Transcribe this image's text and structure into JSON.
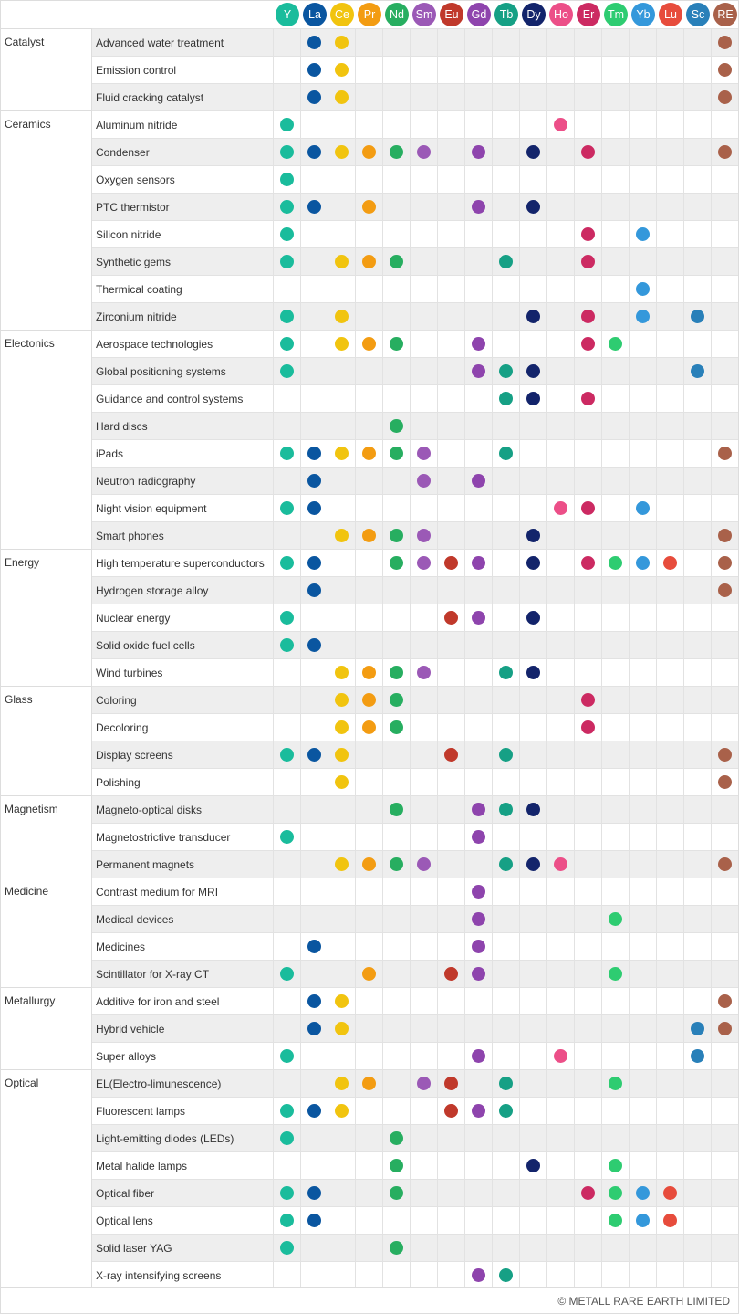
{
  "elements": [
    {
      "sym": "Y",
      "color": "#1abc9c"
    },
    {
      "sym": "La",
      "color": "#0a56a0"
    },
    {
      "sym": "Ce",
      "color": "#f1c40f"
    },
    {
      "sym": "Pr",
      "color": "#f39c12"
    },
    {
      "sym": "Nd",
      "color": "#27ae60"
    },
    {
      "sym": "Sm",
      "color": "#9b59b6"
    },
    {
      "sym": "Eu",
      "color": "#c0392b"
    },
    {
      "sym": "Gd",
      "color": "#8e44ad"
    },
    {
      "sym": "Tb",
      "color": "#16a085"
    },
    {
      "sym": "Dy",
      "color": "#13246b"
    },
    {
      "sym": "Ho",
      "color": "#ec4f88"
    },
    {
      "sym": "Er",
      "color": "#cc2a62"
    },
    {
      "sym": "Tm",
      "color": "#2ecc71"
    },
    {
      "sym": "Yb",
      "color": "#3498db"
    },
    {
      "sym": "Lu",
      "color": "#e74c3c"
    },
    {
      "sym": "Sc",
      "color": "#2980b9"
    },
    {
      "sym": "RE",
      "color": "#a9614a"
    }
  ],
  "groups": [
    {
      "name": "Catalyst",
      "rows": [
        {
          "label": "Advanced water treatment",
          "uses": [
            "La",
            "Ce",
            "RE"
          ]
        },
        {
          "label": "Emission control",
          "uses": [
            "La",
            "Ce",
            "RE"
          ]
        },
        {
          "label": "Fluid cracking catalyst",
          "uses": [
            "La",
            "Ce",
            "RE"
          ]
        }
      ]
    },
    {
      "name": "Ceramics",
      "rows": [
        {
          "label": "Aluminum nitride",
          "uses": [
            "Y",
            "Ho"
          ]
        },
        {
          "label": "Condenser",
          "uses": [
            "Y",
            "La",
            "Ce",
            "Pr",
            "Nd",
            "Sm",
            "Gd",
            "Dy",
            "Er",
            "RE"
          ]
        },
        {
          "label": "Oxygen sensors",
          "uses": [
            "Y"
          ]
        },
        {
          "label": "PTC thermistor",
          "uses": [
            "Y",
            "La",
            "Pr",
            "Gd",
            "Dy"
          ]
        },
        {
          "label": "Silicon nitride",
          "uses": [
            "Y",
            "Er",
            "Yb"
          ]
        },
        {
          "label": "Synthetic gems",
          "uses": [
            "Y",
            "Ce",
            "Pr",
            "Nd",
            "Tb",
            "Er"
          ]
        },
        {
          "label": "Thermical coating",
          "uses": [
            "Yb"
          ]
        },
        {
          "label": "Zirconium nitride",
          "uses": [
            "Y",
            "Ce",
            "Dy",
            "Er",
            "Yb",
            "Sc"
          ]
        }
      ]
    },
    {
      "name": "Electonics",
      "rows": [
        {
          "label": "Aerospace technologies",
          "uses": [
            "Y",
            "Ce",
            "Pr",
            "Nd",
            "Gd",
            "Er",
            "Tm"
          ]
        },
        {
          "label": "Global positioning systems",
          "uses": [
            "Y",
            "Gd",
            "Tb",
            "Dy",
            "Sc"
          ]
        },
        {
          "label": "Guidance and control systems",
          "uses": [
            "Tb",
            "Dy",
            "Er"
          ]
        },
        {
          "label": "Hard discs",
          "uses": [
            "Nd"
          ]
        },
        {
          "label": "iPads",
          "uses": [
            "Y",
            "La",
            "Ce",
            "Pr",
            "Nd",
            "Sm",
            "Tb",
            "RE"
          ]
        },
        {
          "label": "Neutron radiography",
          "uses": [
            "La",
            "Sm",
            "Gd"
          ]
        },
        {
          "label": "Night vision equipment",
          "uses": [
            "Y",
            "La",
            "Ho",
            "Er",
            "Yb"
          ]
        },
        {
          "label": "Smart phones",
          "uses": [
            "Ce",
            "Pr",
            "Nd",
            "Sm",
            "Dy",
            "RE"
          ]
        }
      ]
    },
    {
      "name": "Energy",
      "rows": [
        {
          "label": "High temperature superconductors",
          "uses": [
            "Y",
            "La",
            "Nd",
            "Sm",
            "Eu",
            "Gd",
            "Dy",
            "Er",
            "Tm",
            "Yb",
            "Lu",
            "RE"
          ]
        },
        {
          "label": "Hydrogen storage alloy",
          "uses": [
            "La",
            "RE"
          ]
        },
        {
          "label": "Nuclear energy",
          "uses": [
            "Y",
            "Eu",
            "Gd",
            "Dy"
          ]
        },
        {
          "label": "Solid oxide fuel cells",
          "uses": [
            "Y",
            "La"
          ]
        },
        {
          "label": "Wind turbines",
          "uses": [
            "Ce",
            "Pr",
            "Nd",
            "Sm",
            "Tb",
            "Dy"
          ]
        }
      ]
    },
    {
      "name": "Glass",
      "rows": [
        {
          "label": "Coloring",
          "uses": [
            "Ce",
            "Pr",
            "Nd",
            "Er"
          ]
        },
        {
          "label": "Decoloring",
          "uses": [
            "Ce",
            "Pr",
            "Nd",
            "Er"
          ]
        },
        {
          "label": "Display screens",
          "uses": [
            "Y",
            "La",
            "Ce",
            "Eu",
            "Tb",
            "RE"
          ]
        },
        {
          "label": "Polishing",
          "uses": [
            "Ce",
            "RE"
          ]
        }
      ]
    },
    {
      "name": "Magnetism",
      "rows": [
        {
          "label": "Magneto-optical disks",
          "uses": [
            "Nd",
            "Gd",
            "Tb",
            "Dy"
          ]
        },
        {
          "label": "Magnetostrictive transducer",
          "uses": [
            "Y",
            "Gd"
          ]
        },
        {
          "label": "Permanent magnets",
          "uses": [
            "Ce",
            "Pr",
            "Nd",
            "Sm",
            "Tb",
            "Dy",
            "Ho",
            "RE"
          ]
        }
      ]
    },
    {
      "name": "Medicine",
      "rows": [
        {
          "label": "Contrast medium for MRI",
          "uses": [
            "Gd"
          ]
        },
        {
          "label": "Medical devices",
          "uses": [
            "Gd",
            "Tm"
          ]
        },
        {
          "label": "Medicines",
          "uses": [
            "La",
            "Gd"
          ]
        },
        {
          "label": "Scintillator for X-ray CT",
          "uses": [
            "Y",
            "Pr",
            "Eu",
            "Gd",
            "Tm"
          ]
        }
      ]
    },
    {
      "name": "Metallurgy",
      "rows": [
        {
          "label": "Additive for iron and steel",
          "uses": [
            "La",
            "Ce",
            "RE"
          ]
        },
        {
          "label": "Hybrid vehicle",
          "uses": [
            "La",
            "Ce",
            "Sc",
            "RE"
          ]
        },
        {
          "label": "Super alloys",
          "uses": [
            "Y",
            "Gd",
            "Ho",
            "Sc"
          ]
        }
      ]
    },
    {
      "name": "Optical",
      "rows": [
        {
          "label": "EL(Electro-limunescence)",
          "uses": [
            "Ce",
            "Pr",
            "Sm",
            "Eu",
            "Tb",
            "Tm"
          ]
        },
        {
          "label": "Fluorescent lamps",
          "uses": [
            "Y",
            "La",
            "Ce",
            "Eu",
            "Gd",
            "Tb"
          ]
        },
        {
          "label": "Light-emitting diodes (LEDs)",
          "uses": [
            "Y",
            "Nd"
          ]
        },
        {
          "label": "Metal halide lamps",
          "uses": [
            "Nd",
            "Dy",
            "Tm"
          ]
        },
        {
          "label": "Optical fiber",
          "uses": [
            "Y",
            "La",
            "Nd",
            "Er",
            "Tm",
            "Yb",
            "Lu"
          ]
        },
        {
          "label": "Optical lens",
          "uses": [
            "Y",
            "La",
            "Tm",
            "Yb",
            "Lu"
          ]
        },
        {
          "label": "Solid laser YAG",
          "uses": [
            "Y",
            "Nd"
          ]
        },
        {
          "label": "X-ray intensifying screens",
          "uses": [
            "Gd",
            "Tb"
          ]
        }
      ]
    }
  ],
  "footer": "© METALL RARE EARTH LIMITED"
}
